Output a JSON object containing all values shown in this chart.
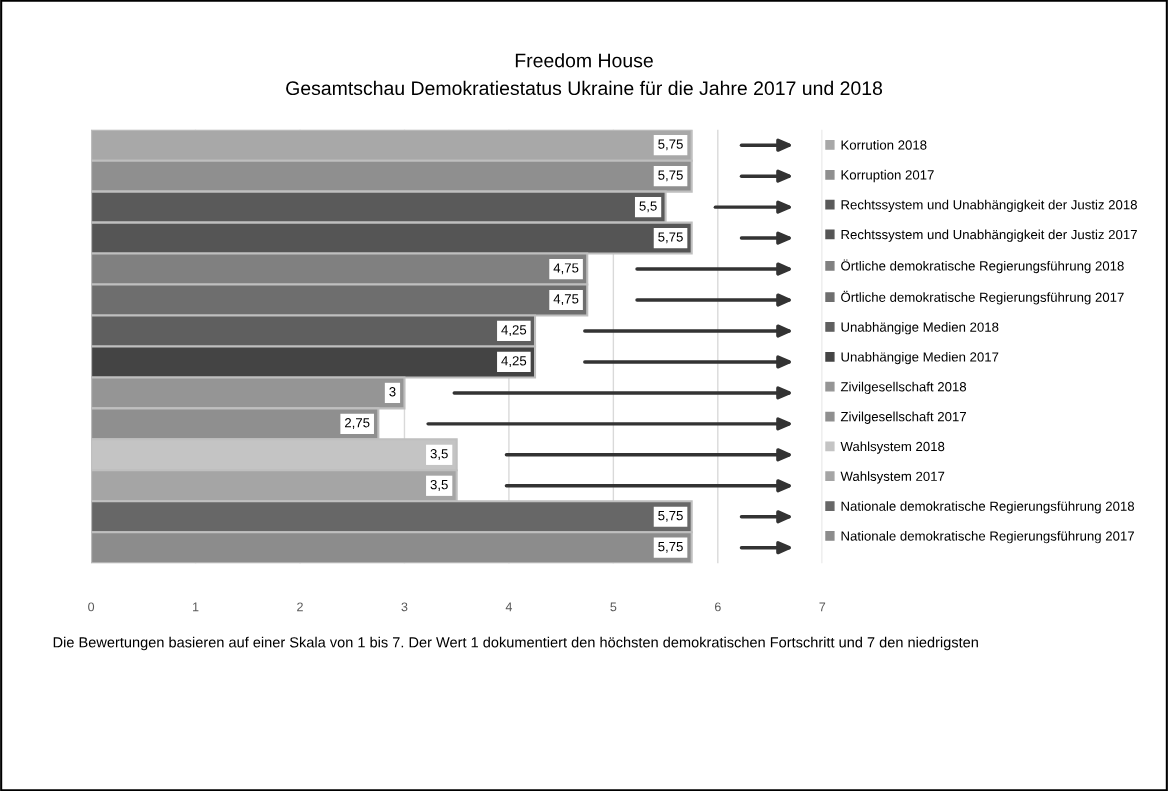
{
  "chart_data": {
    "type": "bar",
    "orientation": "horizontal",
    "title": "Freedom House",
    "subtitle": "Gesamtschau Demokratiestatus Ukraine für die Jahre 2017 und 2018",
    "categories": [
      null,
      null,
      null,
      null,
      null,
      null,
      null,
      null,
      null,
      null,
      null,
      null,
      null,
      null
    ],
    "series": [
      {
        "name": "Korrution 2018",
        "color": "#a8a8a8",
        "values": [
          5.75,
          null,
          null,
          null,
          null,
          null,
          null,
          null,
          null,
          null,
          null,
          null,
          null,
          null
        ],
        "value_labels": [
          "5,75",
          null,
          null,
          null,
          null,
          null,
          null,
          null,
          null,
          null,
          null,
          null,
          null,
          null
        ]
      },
      {
        "name": "Korruption 2017",
        "color": "#8f8f8f",
        "values": [
          null,
          5.75,
          null,
          null,
          null,
          null,
          null,
          null,
          null,
          null,
          null,
          null,
          null,
          null
        ],
        "value_labels": [
          null,
          "5,75",
          null,
          null,
          null,
          null,
          null,
          null,
          null,
          null,
          null,
          null,
          null,
          null
        ]
      },
      {
        "name": "Rechtssystem und Unabhängigkeit der Justiz 2018",
        "color": "#5a5a5a",
        "values": [
          null,
          null,
          5.5,
          null,
          null,
          null,
          null,
          null,
          null,
          null,
          null,
          null,
          null,
          null
        ],
        "value_labels": [
          null,
          null,
          "5,5",
          null,
          null,
          null,
          null,
          null,
          null,
          null,
          null,
          null,
          null,
          null
        ]
      },
      {
        "name": "Rechtssystem und Unabhängigkeit der Justiz 2017",
        "color": "#555555",
        "values": [
          null,
          null,
          null,
          5.75,
          null,
          null,
          null,
          null,
          null,
          null,
          null,
          null,
          null,
          null
        ],
        "value_labels": [
          null,
          null,
          null,
          "5,75",
          null,
          null,
          null,
          null,
          null,
          null,
          null,
          null,
          null,
          null
        ]
      },
      {
        "name": "Örtliche demokratische Regierungsführung 2018",
        "color": "#808080",
        "values": [
          null,
          null,
          null,
          null,
          4.75,
          null,
          null,
          null,
          null,
          null,
          null,
          null,
          null,
          null
        ],
        "value_labels": [
          null,
          null,
          null,
          null,
          "4,75",
          null,
          null,
          null,
          null,
          null,
          null,
          null,
          null,
          null
        ]
      },
      {
        "name": "Örtliche demokratische Regierungsführung 2017",
        "color": "#6e6e6e",
        "values": [
          null,
          null,
          null,
          null,
          null,
          4.75,
          null,
          null,
          null,
          null,
          null,
          null,
          null,
          null
        ],
        "value_labels": [
          null,
          null,
          null,
          null,
          null,
          "4,75",
          null,
          null,
          null,
          null,
          null,
          null,
          null,
          null
        ]
      },
      {
        "name": "Unabhängige Medien 2018",
        "color": "#5f5f5f",
        "values": [
          null,
          null,
          null,
          null,
          null,
          null,
          4.25,
          null,
          null,
          null,
          null,
          null,
          null,
          null
        ],
        "value_labels": [
          null,
          null,
          null,
          null,
          null,
          null,
          "4,25",
          null,
          null,
          null,
          null,
          null,
          null,
          null
        ]
      },
      {
        "name": "Unabhängige Medien 2017",
        "color": "#444444",
        "values": [
          null,
          null,
          null,
          null,
          null,
          null,
          null,
          4.25,
          null,
          null,
          null,
          null,
          null,
          null
        ],
        "value_labels": [
          null,
          null,
          null,
          null,
          null,
          null,
          null,
          "4,25",
          null,
          null,
          null,
          null,
          null,
          null
        ]
      },
      {
        "name": "Zivilgesellschaft 2018",
        "color": "#959595",
        "values": [
          null,
          null,
          null,
          null,
          null,
          null,
          null,
          null,
          3,
          null,
          null,
          null,
          null,
          null
        ],
        "value_labels": [
          null,
          null,
          null,
          null,
          null,
          null,
          null,
          null,
          "3",
          null,
          null,
          null,
          null,
          null
        ]
      },
      {
        "name": "Zivilgesellschaft 2017",
        "color": "#8f8f8f",
        "values": [
          null,
          null,
          null,
          null,
          null,
          null,
          null,
          null,
          null,
          2.75,
          null,
          null,
          null,
          null
        ],
        "value_labels": [
          null,
          null,
          null,
          null,
          null,
          null,
          null,
          null,
          null,
          "2,75",
          null,
          null,
          null,
          null
        ]
      },
      {
        "name": "Wahlsystem 2018",
        "color": "#c4c4c4",
        "values": [
          null,
          null,
          null,
          null,
          null,
          null,
          null,
          null,
          null,
          null,
          3.5,
          null,
          null,
          null
        ],
        "value_labels": [
          null,
          null,
          null,
          null,
          null,
          null,
          null,
          null,
          null,
          null,
          "3,5",
          null,
          null,
          null
        ]
      },
      {
        "name": "Wahlsystem 2017",
        "color": "#a5a5a5",
        "values": [
          null,
          null,
          null,
          null,
          null,
          null,
          null,
          null,
          null,
          null,
          null,
          3.5,
          null,
          null
        ],
        "value_labels": [
          null,
          null,
          null,
          null,
          null,
          null,
          null,
          null,
          null,
          null,
          null,
          "3,5",
          null,
          null
        ]
      },
      {
        "name": "Nationale demokratische Regierungsführung 2018",
        "color": "#676767",
        "values": [
          null,
          null,
          null,
          null,
          null,
          null,
          null,
          null,
          null,
          null,
          null,
          null,
          5.75,
          null
        ],
        "value_labels": [
          null,
          null,
          null,
          null,
          null,
          null,
          null,
          null,
          null,
          null,
          null,
          null,
          "5,75",
          null
        ]
      },
      {
        "name": "Nationale demokratische Regierungsführung 2017",
        "color": "#8c8c8c",
        "values": [
          null,
          null,
          null,
          null,
          null,
          null,
          null,
          null,
          null,
          null,
          null,
          null,
          null,
          5.75
        ],
        "value_labels": [
          null,
          null,
          null,
          null,
          null,
          null,
          null,
          null,
          null,
          null,
          null,
          null,
          null,
          "5,75"
        ]
      }
    ],
    "xlim": [
      0,
      7
    ],
    "xticks": [
      0,
      1,
      2,
      3,
      4,
      5,
      6,
      7
    ],
    "grid": "x",
    "legend": "right",
    "annotations": [
      "Die Bewertungen basieren auf einer Skala von 1 bis 7. Der Wert 1 dokumentiert den höchsten demokratischen Fortschritt und 7 den niedrigsten"
    ]
  }
}
